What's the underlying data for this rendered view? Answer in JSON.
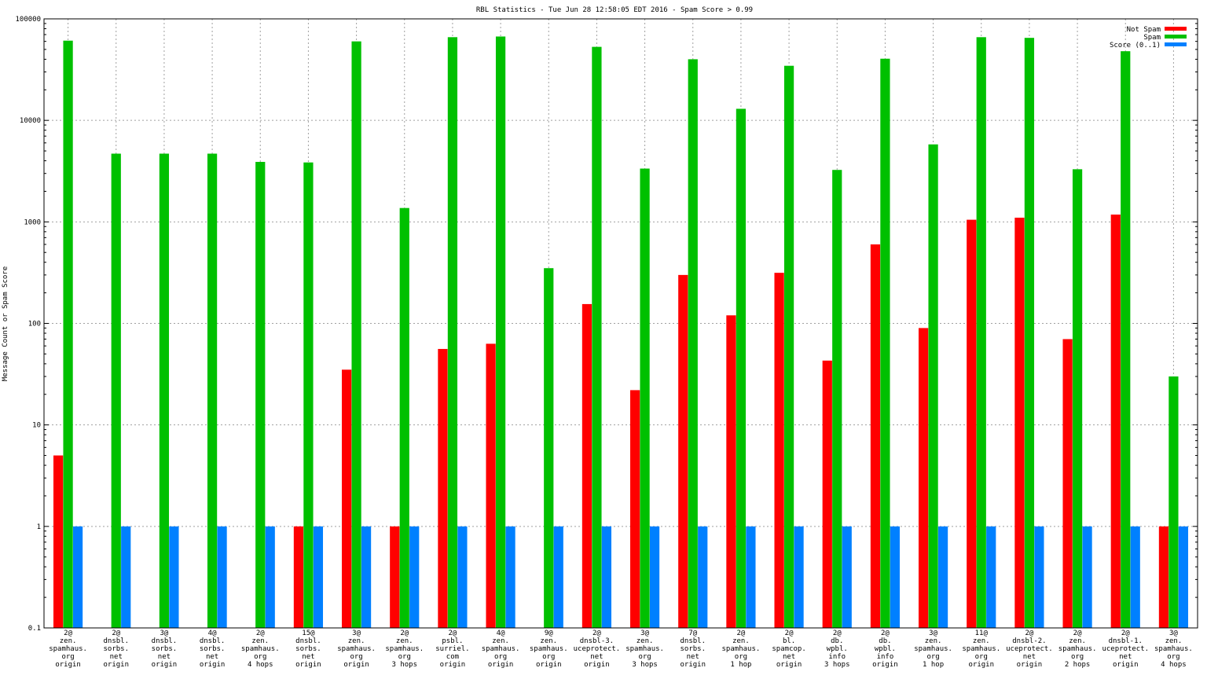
{
  "chart_data": {
    "type": "bar",
    "title": "RBL Statistics - Tue Jun 28 12:58:05 EDT 2016 - Spam Score > 0.99",
    "ylabel": "Message Count or Spam Score",
    "xlabel": "",
    "yscale": "log",
    "ylim": [
      0.1,
      100000
    ],
    "yticks": [
      "0.1",
      "1",
      "10",
      "100",
      "1000",
      "10000",
      "100000"
    ],
    "grid": true,
    "legend_position": "top-right",
    "categories": [
      [
        "2@",
        "zen.",
        "spamhaus.",
        "org",
        "origin"
      ],
      [
        "2@",
        "dnsbl.",
        "sorbs.",
        "net",
        "origin"
      ],
      [
        "3@",
        "dnsbl.",
        "sorbs.",
        "net",
        "origin"
      ],
      [
        "4@",
        "dnsbl.",
        "sorbs.",
        "net",
        "origin"
      ],
      [
        "2@",
        "zen.",
        "spamhaus.",
        "org",
        "4 hops"
      ],
      [
        "15@",
        "dnsbl.",
        "sorbs.",
        "net",
        "origin"
      ],
      [
        "3@",
        "zen.",
        "spamhaus.",
        "org",
        "origin"
      ],
      [
        "2@",
        "zen.",
        "spamhaus.",
        "org",
        "3 hops"
      ],
      [
        "2@",
        "psbl.",
        "surriel.",
        "com",
        "origin"
      ],
      [
        "4@",
        "zen.",
        "spamhaus.",
        "org",
        "origin"
      ],
      [
        "9@",
        "zen.",
        "spamhaus.",
        "org",
        "origin"
      ],
      [
        "2@",
        "dnsbl-3.",
        "uceprotect.",
        "net",
        "origin"
      ],
      [
        "3@",
        "zen.",
        "spamhaus.",
        "org",
        "3 hops"
      ],
      [
        "7@",
        "dnsbl.",
        "sorbs.",
        "net",
        "origin"
      ],
      [
        "2@",
        "zen.",
        "spamhaus.",
        "org",
        "1 hop"
      ],
      [
        "2@",
        "bl.",
        "spamcop.",
        "net",
        "origin"
      ],
      [
        "2@",
        "db.",
        "wpbl.",
        "info",
        "3 hops"
      ],
      [
        "2@",
        "db.",
        "wpbl.",
        "info",
        "origin"
      ],
      [
        "3@",
        "zen.",
        "spamhaus.",
        "org",
        "1 hop"
      ],
      [
        "11@",
        "zen.",
        "spamhaus.",
        "org",
        "origin"
      ],
      [
        "2@",
        "dnsbl-2.",
        "uceprotect.",
        "net",
        "origin"
      ],
      [
        "2@",
        "zen.",
        "spamhaus.",
        "org",
        "2 hops"
      ],
      [
        "2@",
        "dnsbl-1.",
        "uceprotect.",
        "net",
        "origin"
      ],
      [
        "3@",
        "zen.",
        "spamhaus.",
        "org",
        "4 hops"
      ]
    ],
    "series": [
      {
        "name": "Not Spam",
        "color": "#ff0000",
        "values": [
          5,
          0,
          0,
          0,
          0,
          1,
          35,
          1,
          56,
          63,
          0,
          155,
          22,
          300,
          120,
          315,
          43,
          600,
          90,
          1050,
          1100,
          70,
          1180,
          1
        ]
      },
      {
        "name": "Spam",
        "color": "#00c000",
        "values": [
          61000,
          4700,
          4700,
          4700,
          3900,
          3850,
          60000,
          1370,
          66000,
          67000,
          350,
          53000,
          3350,
          40000,
          13000,
          34500,
          3250,
          40500,
          5800,
          66000,
          65000,
          3300,
          48000,
          30
        ]
      },
      {
        "name": "Score (0..1)",
        "color": "#0080ff",
        "values": [
          1,
          1,
          1,
          1,
          1,
          1,
          1,
          1,
          1,
          1,
          1,
          1,
          1,
          1,
          1,
          1,
          1,
          1,
          1,
          1,
          1,
          1,
          1,
          1
        ]
      }
    ]
  }
}
